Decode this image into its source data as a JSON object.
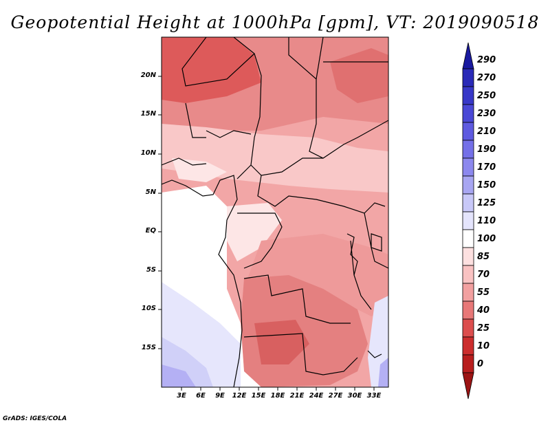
{
  "title": "Geopotential Height at 1000hPa [gpm], VT: 2019090518",
  "map": {
    "lat_labels": [
      "20N",
      "15N",
      "10N",
      "5N",
      "EQ",
      "5S",
      "10S",
      "15S"
    ],
    "lon_labels": [
      "3E",
      "6E",
      "9E",
      "12E",
      "15E",
      "18E",
      "21E",
      "24E",
      "27E",
      "30E",
      "33E"
    ]
  },
  "colorbar": {
    "levels": [
      "290",
      "270",
      "250",
      "230",
      "210",
      "190",
      "170",
      "150",
      "125",
      "110",
      "100",
      "85",
      "70",
      "55",
      "40",
      "25",
      "10",
      "0"
    ],
    "colors": [
      "#1a1aa0",
      "#2a2ab8",
      "#3838c8",
      "#4a48d6",
      "#5e5ae0",
      "#7470e8",
      "#8c88ee",
      "#a8a6f2",
      "#c8c8f8",
      "#e4e4fc",
      "#ffffff",
      "#fde0e0",
      "#f9c2c2",
      "#f2a0a0",
      "#e87878",
      "#dc4e4e",
      "#cc2e2e",
      "#b81e1e",
      "#9c1414"
    ]
  },
  "credit": "GrADS: IGES/COLA"
}
